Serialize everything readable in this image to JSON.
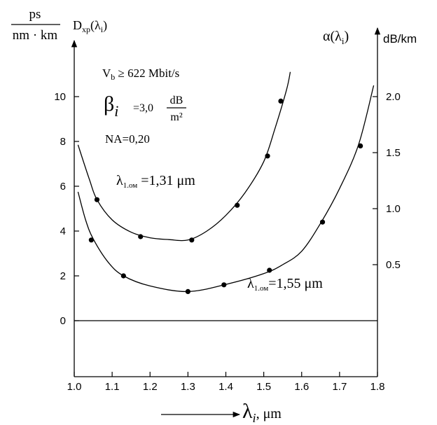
{
  "chart_data": {
    "type": "line",
    "x_range": [
      1.0,
      1.8
    ],
    "y_left_range": [
      -2.5,
      12.5
    ],
    "y_right_range": [
      -0.5,
      2.5
    ],
    "x_ticks": [
      "1.0",
      "1.1",
      "1.2",
      "1.3",
      "1.4",
      "1.5",
      "1.6",
      "1.7",
      "1.8"
    ],
    "y_left_ticks": [
      "10",
      "8",
      "6",
      "4",
      "2",
      "0"
    ],
    "y_left_tick_values": [
      10,
      8,
      6,
      4,
      2,
      0
    ],
    "y_right_ticks": [
      "2.0",
      "1.5",
      "1.0",
      "0.5"
    ],
    "y_right_tick_values": [
      2.0,
      1.5,
      1.0,
      0.5
    ],
    "labels": {
      "left_unit_num": "ps",
      "left_unit_den": "nm · km",
      "left_title": "D",
      "left_title_sub": "xp",
      "left_title_arg": "(λ",
      "left_title_arg_sub": "i",
      "left_title_arg_end": ")",
      "right_title": "α(λ",
      "right_title_sub": "i",
      "right_title_end": ")",
      "right_unit": "dB/km",
      "x_label_main": "λ",
      "x_label_sub": "i",
      "x_label_unit": ", μm"
    },
    "annotations": {
      "vb_main": "V",
      "vb_sub": "b",
      "vb_rest": " ≥ 622 Mbit/s",
      "beta_main": "β",
      "beta_sub": "i",
      "beta_value": "=3,0",
      "beta_unit_num": "dB",
      "beta_unit_den": "m²",
      "na": "NA=0,20",
      "lambda1_main": "λ",
      "lambda1_sub": "1.ом",
      "lambda1_value": " =1,31 μm",
      "lambda2_main": "λ",
      "lambda2_sub": "1.ом",
      "lambda2_value": "=1,55 μm"
    },
    "series": [
      {
        "curve": [
          [
            1.01,
            7.85
          ],
          [
            1.04,
            6.3
          ],
          [
            1.06,
            5.4
          ],
          [
            1.1,
            4.5
          ],
          [
            1.15,
            3.95
          ],
          [
            1.2,
            3.7
          ],
          [
            1.25,
            3.62
          ],
          [
            1.3,
            3.6
          ],
          [
            1.35,
            4.0
          ],
          [
            1.4,
            4.7
          ],
          [
            1.45,
            5.7
          ],
          [
            1.5,
            7.1
          ],
          [
            1.53,
            8.6
          ],
          [
            1.56,
            10.3
          ],
          [
            1.57,
            11.1
          ]
        ],
        "points": [
          [
            1.06,
            5.4
          ],
          [
            1.175,
            3.75
          ],
          [
            1.31,
            3.6
          ],
          [
            1.43,
            5.15
          ],
          [
            1.51,
            7.35
          ],
          [
            1.545,
            9.8
          ]
        ]
      },
      {
        "curve": [
          [
            1.01,
            5.75
          ],
          [
            1.03,
            4.5
          ],
          [
            1.05,
            3.65
          ],
          [
            1.09,
            2.6
          ],
          [
            1.13,
            2.0
          ],
          [
            1.2,
            1.55
          ],
          [
            1.3,
            1.3
          ],
          [
            1.4,
            1.62
          ],
          [
            1.5,
            2.1
          ],
          [
            1.55,
            2.5
          ],
          [
            1.6,
            3.1
          ],
          [
            1.65,
            4.35
          ],
          [
            1.7,
            5.9
          ],
          [
            1.75,
            7.85
          ],
          [
            1.79,
            10.5
          ]
        ],
        "points": [
          [
            1.045,
            3.6
          ],
          [
            1.13,
            2.0
          ],
          [
            1.3,
            1.3
          ],
          [
            1.395,
            1.6
          ],
          [
            1.515,
            2.25
          ],
          [
            1.655,
            4.4
          ],
          [
            1.755,
            7.8
          ]
        ]
      }
    ]
  }
}
